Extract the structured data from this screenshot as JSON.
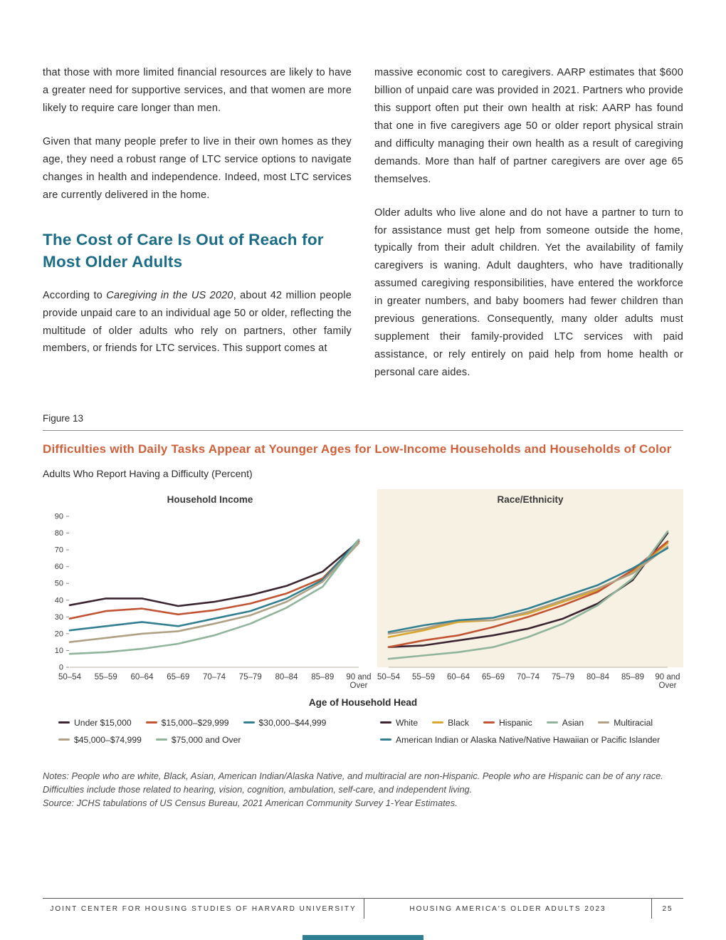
{
  "page": {
    "colors": {
      "heading": "#1b6c86",
      "figure_title": "#d0603a",
      "panel_beige": "#f7f1e3",
      "accent_teal": "#2f7f93"
    },
    "columns": {
      "left": {
        "p1": "that those with more limited financial resources are likely to have a greater need for supportive services, and that women are more likely to require care longer than men.",
        "p2": "Given that many people prefer to live in their own homes as they age, they need a robust range of LTC service options to navigate changes in health and independence. Indeed, most LTC services are currently delivered in the home.",
        "heading": "The Cost of Care Is Out of Reach for Most Older Adults",
        "p3_pre": "According to ",
        "p3_italic": "Caregiving in the US 2020",
        "p3_post": ", about 42 million people provide unpaid care to an individual age 50 or older, reflecting the multitude of older adults who rely on partners, other family members, or friends for LTC services. This support comes at"
      },
      "right": {
        "p1": "massive economic cost to caregivers. AARP estimates that $600 billion of unpaid care was provided in 2021. Partners who provide this support often put their own health at risk: AARP has found that one in five caregivers age 50 or older report physical strain and difficulty managing their own health as a result of caregiving demands. More than half of partner caregivers are over age 65 themselves.",
        "p2": "Older adults who live alone and do not have a partner to turn to for assistance must get help from someone outside the home, typically from their adult children. Yet the availability of family caregivers is waning. Adult daughters, who have traditionally assumed caregiving responsibilities, have entered the workforce in greater numbers, and baby boomers had fewer children than previous generations. Consequently, many older adults must supplement their family-provided LTC services with paid assistance, or rely entirely on paid help from home health or personal care aides."
      }
    },
    "figure": {
      "label": "Figure 13",
      "title": "Difficulties with Daily Tasks Appear at Younger Ages for Low-Income Households and Households of Color",
      "subtitle": "Adults Who Report Having a Difficulty (Percent)",
      "x_axis_label": "Age of Household Head",
      "notes": "Notes: People who are white, Black, Asian, American Indian/Alaska Native, and multiracial are non-Hispanic. People who are Hispanic can be of any race. Difficulties include those related to hearing, vision, cognition, ambulation, self-care, and independent living.",
      "source": "Source: JCHS tabulations of US Census Bureau, 2021 American Community Survey 1-Year Estimates."
    },
    "footer": {
      "left": "JOINT CENTER FOR HOUSING STUDIES OF HARVARD UNIVERSITY",
      "center": "HOUSING AMERICA'S OLDER ADULTS 2023",
      "page_number": "25"
    }
  },
  "chart_data": [
    {
      "type": "line",
      "title": "Household Income",
      "xlabel": "Age of Household Head",
      "ylabel": "Adults Who Report Having a Difficulty (Percent)",
      "categories": [
        "50–54",
        "55–59",
        "60–64",
        "65–69",
        "70–74",
        "75–79",
        "80–84",
        "85–89",
        "90 and\nOver"
      ],
      "ylim": [
        0,
        90
      ],
      "yticks": [
        0,
        10,
        20,
        30,
        40,
        50,
        60,
        70,
        80,
        90
      ],
      "grid": false,
      "legend_position": "bottom",
      "show_y_labels": true,
      "legend_rows": [
        [
          0,
          1,
          2
        ],
        [
          3,
          4
        ]
      ],
      "series": [
        {
          "name": "Under $15,000",
          "color": "#3b2531",
          "values": [
            37,
            41,
            41,
            36.5,
            39,
            43,
            48.5,
            57,
            75
          ]
        },
        {
          "name": "$15,000–$29,999",
          "color": "#c25434",
          "values": [
            29,
            33.5,
            35,
            31.5,
            34,
            38,
            44,
            53,
            75
          ]
        },
        {
          "name": "$30,000–$44,999",
          "color": "#337f92",
          "values": [
            22,
            24.5,
            27,
            24.5,
            29,
            33.5,
            41,
            52,
            76
          ]
        },
        {
          "name": "$45,000–$74,999",
          "color": "#b0a185",
          "values": [
            15,
            17.5,
            20,
            21.5,
            26,
            31,
            39,
            51,
            74
          ]
        },
        {
          "name": "$75,000 and Over",
          "color": "#90b49c",
          "values": [
            8,
            9,
            11,
            14,
            19,
            26,
            35.5,
            48,
            76
          ]
        }
      ]
    },
    {
      "type": "line",
      "title": "Race/Ethnicity",
      "xlabel": "Age of Household Head",
      "ylabel": "Adults Who Report Having a Difficulty (Percent)",
      "categories": [
        "50–54",
        "55–59",
        "60–64",
        "65–69",
        "70–74",
        "75–79",
        "80–84",
        "85–89",
        "90 and\nOver"
      ],
      "ylim": [
        0,
        90
      ],
      "yticks": [
        0,
        10,
        20,
        30,
        40,
        50,
        60,
        70,
        80,
        90
      ],
      "grid": false,
      "legend_position": "bottom",
      "show_y_labels": false,
      "panel_background": "#f7f1e3",
      "legend_rows": [
        [
          0,
          1,
          2,
          3,
          4
        ],
        [
          5
        ]
      ],
      "series": [
        {
          "name": "White",
          "color": "#3b2531",
          "values": [
            12,
            13,
            16,
            19,
            23,
            29,
            38,
            52,
            80
          ]
        },
        {
          "name": "Black",
          "color": "#d9a62e",
          "values": [
            18,
            22,
            27,
            28,
            32,
            39,
            46,
            57,
            74
          ]
        },
        {
          "name": "Hispanic",
          "color": "#c25434",
          "values": [
            12,
            16,
            19,
            24,
            30,
            37,
            45,
            58,
            75
          ]
        },
        {
          "name": "Asian",
          "color": "#90b49c",
          "values": [
            5,
            7,
            9,
            12,
            18,
            26,
            37,
            53,
            81
          ]
        },
        {
          "name": "Multiracial",
          "color": "#b0a185",
          "values": [
            20,
            23,
            28,
            28,
            33,
            40,
            47,
            56,
            72
          ]
        },
        {
          "name": "American Indian or Alaska Native/Native Hawaiian or Pacific Islander",
          "color": "#337f92",
          "values": [
            21,
            25,
            28,
            29.5,
            35,
            42,
            49,
            59,
            71
          ]
        }
      ]
    }
  ]
}
